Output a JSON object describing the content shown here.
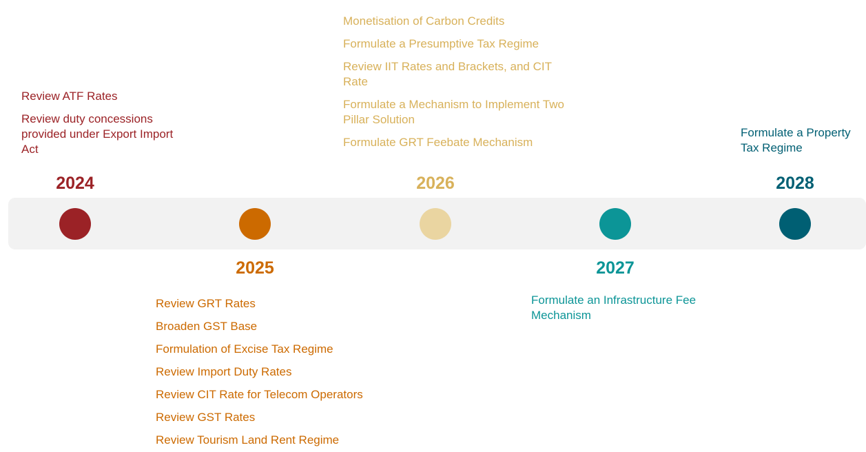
{
  "milestones": [
    {
      "year": "2024",
      "items": [
        "Review ATF Rates",
        "Review duty concessions provided under Export Import Act"
      ]
    },
    {
      "year": "2025",
      "items": [
        "Review GRT Rates",
        "Broaden GST Base",
        "Formulation of Excise Tax Regime",
        "Review Import Duty Rates",
        "Review CIT Rate for Telecom Operators",
        "Review GST Rates",
        "Review Tourism Land Rent Regime"
      ]
    },
    {
      "year": "2026",
      "items": [
        "Monetisation of Carbon Credits",
        "Formulate a Presumptive Tax Regime",
        "Review IIT Rates and Brackets, and CIT Rate",
        "Formulate a Mechanism to Implement Two Pillar Solution",
        "Formulate GRT Feebate Mechanism"
      ]
    },
    {
      "year": "2027",
      "items": [
        "Formulate an Infrastructure Fee Mechanism"
      ]
    },
    {
      "year": "2028",
      "items": [
        "Formulate a Property Tax Regime"
      ]
    }
  ]
}
